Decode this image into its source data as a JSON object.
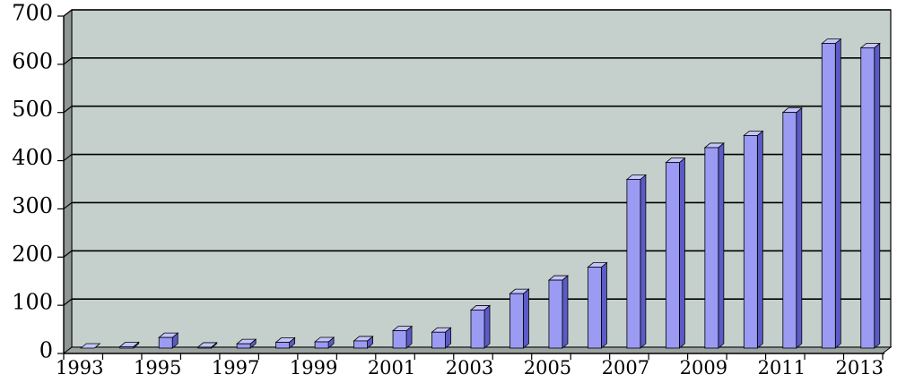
{
  "chart_data": {
    "type": "bar",
    "title": "",
    "xlabel": "",
    "ylabel": "",
    "ylim": [
      0,
      700
    ],
    "yticks": [
      0,
      100,
      200,
      300,
      400,
      500,
      600,
      700
    ],
    "ytick_labels": [
      "0",
      "100",
      "200",
      "300",
      "400",
      "500",
      "600",
      "700"
    ],
    "grid": true,
    "legend": "none",
    "categories": [
      "1993",
      "1994",
      "1995",
      "1996",
      "1997",
      "1998",
      "1999",
      "2000",
      "2001",
      "2002",
      "2003",
      "2004",
      "2005",
      "2006",
      "2007",
      "2008",
      "2009",
      "2010",
      "2011",
      "2012",
      "2013"
    ],
    "xtick_labels": [
      "1993",
      "1995",
      "1997",
      "1999",
      "2001",
      "2003",
      "2005",
      "2007",
      "2009",
      "2011",
      "2013"
    ],
    "values": [
      0,
      3,
      22,
      2,
      9,
      12,
      13,
      15,
      36,
      33,
      79,
      113,
      141,
      168,
      350,
      385,
      416,
      441,
      489,
      632,
      623
    ],
    "colors": {
      "bar_front": "#9b9bf4",
      "bar_side": "#5b5bc8",
      "bar_top": "#c4c4fb",
      "plot_back": "#c5d0cc",
      "floor": "#9aa3a0",
      "grid": "#000000"
    }
  }
}
